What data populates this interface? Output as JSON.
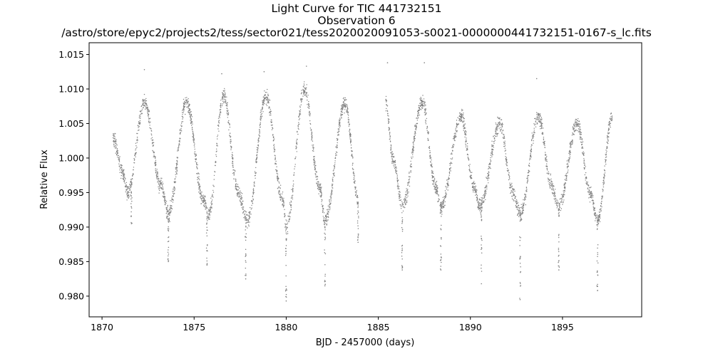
{
  "chart_data": {
    "type": "scatter",
    "title": "Light Curve for TIC 441732151",
    "subtitle": "Observation 6",
    "file_path": "/astro/store/epyc2/projects2/tess/sector021/tess2020020091053-s0021-0000000441732151-0167-s_lc.fits",
    "xlabel": "BJD - 2457000 (days)",
    "ylabel": "Relative Flux",
    "xlim": [
      1869.3,
      1899.3
    ],
    "ylim": [
      0.977,
      1.0167
    ],
    "xticks": [
      1870,
      1875,
      1880,
      1885,
      1890,
      1895
    ],
    "xtick_labels": [
      "1870",
      "1875",
      "1880",
      "1885",
      "1890",
      "1895"
    ],
    "yticks": [
      0.98,
      0.985,
      0.99,
      0.995,
      1.0,
      1.005,
      1.01,
      1.015
    ],
    "ytick_labels": [
      "0.980",
      "0.985",
      "0.990",
      "0.995",
      "1.000",
      "1.005",
      "1.010",
      "1.015"
    ],
    "grid": false,
    "marker_color": "#808080",
    "segments": [
      {
        "x_start": 1870.6,
        "x_end": 1883.9
      },
      {
        "x_start": 1885.4,
        "x_end": 1897.8
      }
    ],
    "series": [
      {
        "type": "line",
        "points": [
          [
            1870.6,
            1.003
          ],
          [
            1871.1,
            0.998
          ],
          [
            1871.4,
            0.995
          ],
          [
            1872.3,
            1.008
          ],
          [
            1873.2,
            0.996
          ],
          [
            1873.6,
            0.992
          ],
          [
            1874.6,
            1.008
          ],
          [
            1875.5,
            0.994
          ],
          [
            1875.8,
            0.992
          ],
          [
            1876.6,
            1.009
          ],
          [
            1877.4,
            0.995
          ],
          [
            1877.9,
            0.991
          ],
          [
            1878.9,
            1.009
          ],
          [
            1879.8,
            0.994
          ],
          [
            1880.0,
            0.99
          ],
          [
            1881.0,
            1.01
          ],
          [
            1881.8,
            0.996
          ],
          [
            1882.1,
            0.991
          ],
          [
            1883.2,
            1.008
          ],
          [
            1883.9,
            0.994
          ],
          [
            1885.4,
            1.008
          ],
          [
            1885.8,
            1.0
          ],
          [
            1886.3,
            0.993
          ],
          [
            1887.4,
            1.008
          ],
          [
            1888.1,
            0.996
          ],
          [
            1888.4,
            0.993
          ],
          [
            1889.5,
            1.006
          ],
          [
            1890.2,
            0.996
          ],
          [
            1890.5,
            0.993
          ],
          [
            1891.6,
            1.005
          ],
          [
            1892.3,
            0.995
          ],
          [
            1892.7,
            0.992
          ],
          [
            1893.7,
            1.006
          ],
          [
            1894.4,
            0.996
          ],
          [
            1894.8,
            0.993
          ],
          [
            1895.8,
            1.005
          ],
          [
            1896.5,
            0.995
          ],
          [
            1896.9,
            0.991
          ],
          [
            1897.7,
            1.006
          ]
        ]
      }
    ],
    "dips": [
      {
        "x": 1871.6,
        "y_min": 0.9905
      },
      {
        "x": 1873.6,
        "y_min": 0.985
      },
      {
        "x": 1875.7,
        "y_min": 0.9845
      },
      {
        "x": 1877.8,
        "y_min": 0.9825
      },
      {
        "x": 1880.0,
        "y_min": 0.9793
      },
      {
        "x": 1882.1,
        "y_min": 0.9815
      },
      {
        "x": 1883.9,
        "y_min": 0.9878
      },
      {
        "x": 1886.3,
        "y_min": 0.9838
      },
      {
        "x": 1888.4,
        "y_min": 0.9838
      },
      {
        "x": 1890.6,
        "y_min": 0.9818
      },
      {
        "x": 1892.7,
        "y_min": 0.9795
      },
      {
        "x": 1894.8,
        "y_min": 0.9838
      },
      {
        "x": 1896.9,
        "y_min": 0.9808
      }
    ],
    "outliers_high": [
      {
        "x": 1872.3,
        "y": 1.0128
      },
      {
        "x": 1876.5,
        "y": 1.0122
      },
      {
        "x": 1878.8,
        "y": 1.0125
      },
      {
        "x": 1881.1,
        "y": 1.0133
      },
      {
        "x": 1885.5,
        "y": 1.0138
      },
      {
        "x": 1887.5,
        "y": 1.0138
      },
      {
        "x": 1893.6,
        "y": 1.0115
      }
    ]
  }
}
